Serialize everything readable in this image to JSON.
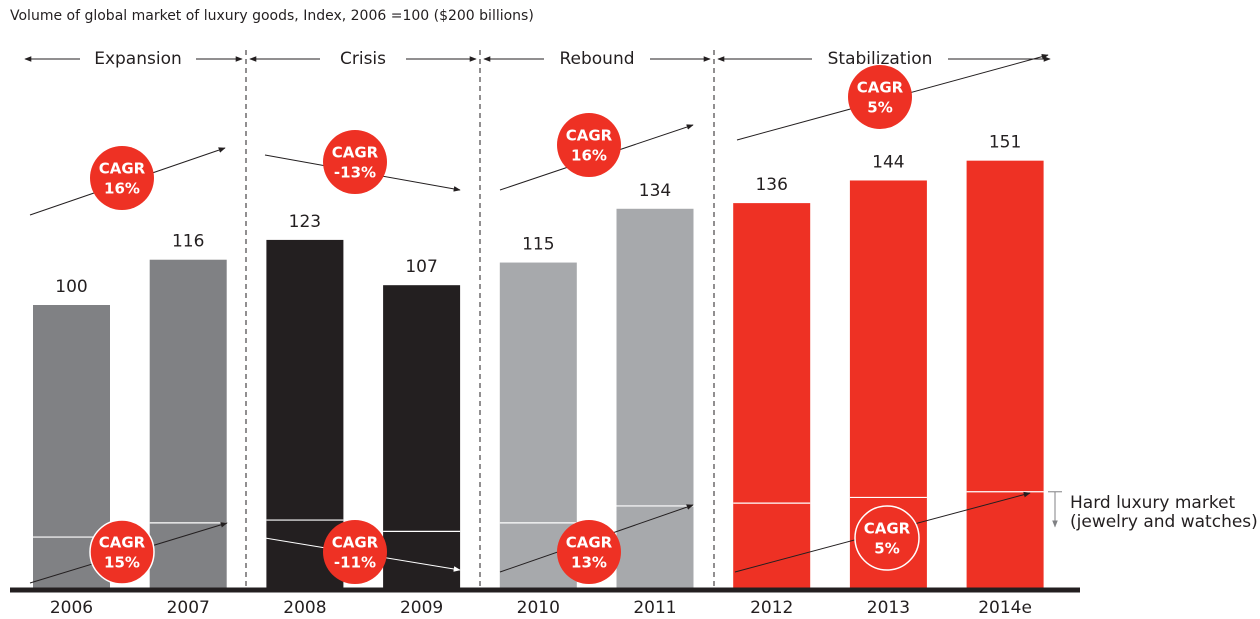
{
  "chart_data": {
    "type": "bar",
    "title": "Volume of global market of luxury goods, Index, 2006 =100 ($200 billions)",
    "categories": [
      "2006",
      "2007",
      "2008",
      "2009",
      "2010",
      "2011",
      "2012",
      "2013",
      "2014e"
    ],
    "ylim": [
      0,
      200
    ],
    "series": [
      {
        "name": "Total",
        "values": [
          100,
          116,
          123,
          107,
          115,
          134,
          136,
          144,
          151
        ],
        "colors": [
          "#808184",
          "#808184",
          "#231f20",
          "#231f20",
          "#a7a9ac",
          "#a7a9ac",
          "#ee3124",
          "#ee3124",
          "#ee3124"
        ]
      },
      {
        "name_lines": [
          "Hard luxury market",
          "(jewelry and watches)"
        ],
        "values": [
          18,
          23,
          24,
          20,
          23,
          29,
          30,
          32,
          34
        ],
        "color": "#ffffff"
      }
    ],
    "cagr_label": "CAGR",
    "phases": [
      {
        "name": "Expansion",
        "cagr_total": "16%",
        "cagr_hard": "15%"
      },
      {
        "name": "Crisis",
        "cagr_total": "-13%",
        "cagr_hard": "-11%"
      },
      {
        "name": "Rebound",
        "cagr_total": "16%",
        "cagr_hard": "13%"
      },
      {
        "name": "Stabilization",
        "cagr_total": "5%",
        "cagr_hard": "5%"
      }
    ]
  }
}
